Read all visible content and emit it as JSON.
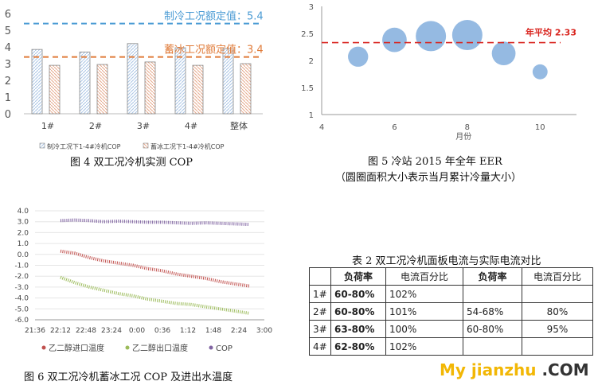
{
  "figures": {
    "fig4": {
      "caption": "图 4 双工况冷机实测 COP"
    },
    "fig5": {
      "caption_line1": "图 5 冷站 2015 年全年 EER",
      "caption_line2": "（圆圈面积大小表示当月累计冷量大小）"
    },
    "fig6": {
      "caption": "图 6 双工况冷机蓄冰工况 COP 及进出水温度"
    }
  },
  "chart_data": [
    {
      "id": "fig4",
      "type": "bar",
      "categories": [
        "1#",
        "2#",
        "3#",
        "4#",
        "整体"
      ],
      "series": [
        {
          "name": "制冷工况下1-4#冷机COP",
          "values": [
            3.85,
            3.7,
            4.2,
            3.95,
            3.9
          ],
          "color": "#a9c4e4"
        },
        {
          "name": "蓄冰工况下1-4#冷机COP",
          "values": [
            2.9,
            2.95,
            3.1,
            2.9,
            3.0
          ],
          "color": "#e7a98c"
        }
      ],
      "ylim": [
        0,
        6
      ],
      "yticks": [
        "0",
        "1",
        "2",
        "3",
        "4",
        "5",
        "6"
      ],
      "reference_lines": [
        {
          "label": "制冷工况额定值：5.4",
          "value": 5.4,
          "color": "#4a9bd4"
        },
        {
          "label": "蓄冰工况额定值：3.4",
          "value": 3.4,
          "color": "#e07b39"
        }
      ],
      "legend_position": "bottom"
    },
    {
      "id": "fig5",
      "type": "scatter",
      "xlabel": "月份",
      "xlim": [
        4,
        11
      ],
      "ylim": [
        1,
        3
      ],
      "xticks": [
        "4",
        "6",
        "8",
        "10"
      ],
      "yticks": [
        "1",
        "1.5",
        "2",
        "2.5",
        "3"
      ],
      "points": [
        {
          "x": 5,
          "y": 2.07,
          "size": 0.3
        },
        {
          "x": 6,
          "y": 2.38,
          "size": 0.55
        },
        {
          "x": 7,
          "y": 2.45,
          "size": 1.0
        },
        {
          "x": 8,
          "y": 2.47,
          "size": 1.0
        },
        {
          "x": 9,
          "y": 2.13,
          "size": 0.5
        },
        {
          "x": 10,
          "y": 1.79,
          "size": 0.1
        }
      ],
      "point_color": "#8fb6e0",
      "reference_line": {
        "label": "年平均  2.33",
        "value": 2.33,
        "color": "#d9241e"
      }
    },
    {
      "id": "fig6",
      "type": "line",
      "xticks": [
        "21:36",
        "22:12",
        "22:48",
        "23:24",
        "0:00",
        "0:36",
        "1:12",
        "1:48",
        "2:24",
        "3:00"
      ],
      "yticks": [
        "4.0",
        "3.0",
        "2.0",
        "1.0",
        "0.0",
        "-1.0",
        "-2.0",
        "-3.0",
        "-4.0",
        "-5.0",
        "-6.0"
      ],
      "ylim": [
        -6,
        4
      ],
      "x_start_tick": 1,
      "x_end_tick": 8.4,
      "series": [
        {
          "name": "乙二醇进口温度",
          "color": "#c0504d",
          "values": [
            0.3,
            0.1,
            -0.3,
            -0.6,
            -0.8,
            -1.0,
            -1.3,
            -1.5,
            -1.8,
            -2.0,
            -2.2,
            -2.5,
            -2.7,
            -2.9
          ]
        },
        {
          "name": "乙二醇出口温度",
          "color": "#9bbb59",
          "values": [
            -2.1,
            -2.6,
            -3.0,
            -3.3,
            -3.6,
            -3.8,
            -4.1,
            -4.3,
            -4.5,
            -4.6,
            -4.8,
            -5.0,
            -5.2,
            -5.4
          ]
        },
        {
          "name": "COP",
          "color": "#8064a2",
          "values": [
            3.1,
            3.15,
            3.1,
            3.0,
            3.05,
            3.0,
            2.95,
            2.95,
            2.9,
            2.85,
            2.9,
            2.85,
            2.8,
            2.75
          ]
        }
      ],
      "legend_position": "bottom"
    }
  ],
  "table2": {
    "title": "表 2 双工况冷机面板电流与实际电流对比",
    "headers": [
      "",
      "负荷率",
      "电流百分比",
      "负荷率",
      "电流百分比"
    ],
    "rows": [
      [
        "1#",
        "60-80%",
        "102%",
        "",
        ""
      ],
      [
        "2#",
        "60-80%",
        "101%",
        "54-68%",
        "80%"
      ],
      [
        "3#",
        "63-80%",
        "100%",
        "60-80%",
        "95%"
      ],
      [
        "4#",
        "62-80%",
        "102%",
        "",
        ""
      ]
    ]
  },
  "watermark": {
    "text": "My jianzhu",
    "suffix": ".COM"
  }
}
